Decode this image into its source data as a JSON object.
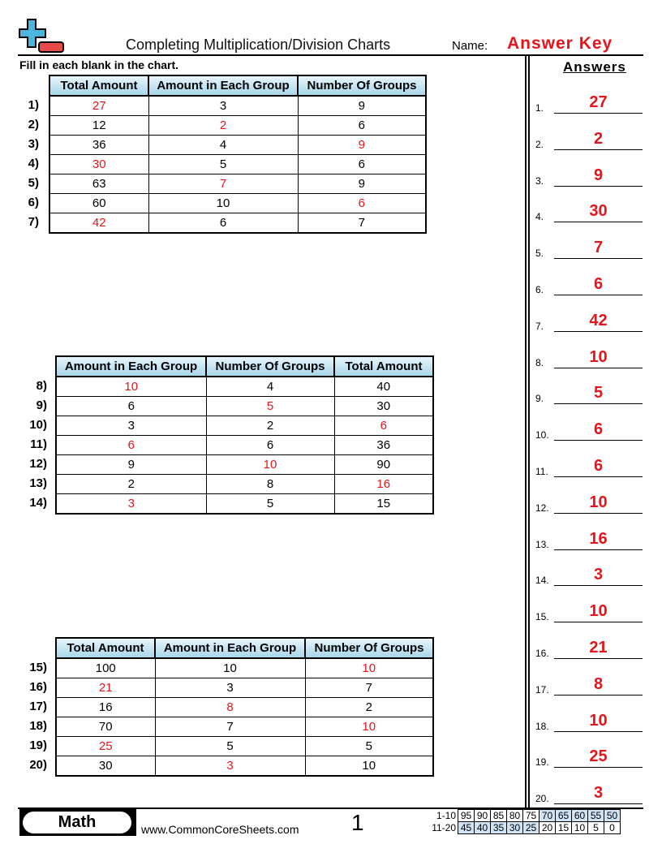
{
  "header": {
    "title": "Completing Multiplication/Division Charts",
    "name_label": "Name:",
    "name_value": "Answer Key",
    "instructions": "Fill in each blank in the chart."
  },
  "colors": {
    "answer": "#e8141b",
    "header_gradient": "#a8d6ea"
  },
  "tables": [
    {
      "headers": [
        "Total Amount",
        "Amount in Each Group",
        "Number Of Groups"
      ],
      "rows": [
        {
          "n": "1)",
          "c": [
            "27",
            "3",
            "9"
          ],
          "a": 0
        },
        {
          "n": "2)",
          "c": [
            "12",
            "2",
            "6"
          ],
          "a": 1
        },
        {
          "n": "3)",
          "c": [
            "36",
            "4",
            "9"
          ],
          "a": 2
        },
        {
          "n": "4)",
          "c": [
            "30",
            "5",
            "6"
          ],
          "a": 0
        },
        {
          "n": "5)",
          "c": [
            "63",
            "7",
            "9"
          ],
          "a": 1
        },
        {
          "n": "6)",
          "c": [
            "60",
            "10",
            "6"
          ],
          "a": 2
        },
        {
          "n": "7)",
          "c": [
            "42",
            "6",
            "7"
          ],
          "a": 0
        }
      ]
    },
    {
      "headers": [
        "Amount in Each Group",
        "Number Of Groups",
        "Total Amount"
      ],
      "rows": [
        {
          "n": "8)",
          "c": [
            "10",
            "4",
            "40"
          ],
          "a": 0
        },
        {
          "n": "9)",
          "c": [
            "6",
            "5",
            "30"
          ],
          "a": 1
        },
        {
          "n": "10)",
          "c": [
            "3",
            "2",
            "6"
          ],
          "a": 2
        },
        {
          "n": "11)",
          "c": [
            "6",
            "6",
            "36"
          ],
          "a": 0
        },
        {
          "n": "12)",
          "c": [
            "9",
            "10",
            "90"
          ],
          "a": 1
        },
        {
          "n": "13)",
          "c": [
            "2",
            "8",
            "16"
          ],
          "a": 2
        },
        {
          "n": "14)",
          "c": [
            "3",
            "5",
            "15"
          ],
          "a": 0
        }
      ]
    },
    {
      "headers": [
        "Total Amount",
        "Amount in Each Group",
        "Number Of Groups"
      ],
      "rows": [
        {
          "n": "15)",
          "c": [
            "100",
            "10",
            "10"
          ],
          "a": 2
        },
        {
          "n": "16)",
          "c": [
            "21",
            "3",
            "7"
          ],
          "a": 0
        },
        {
          "n": "17)",
          "c": [
            "16",
            "8",
            "2"
          ],
          "a": 1
        },
        {
          "n": "18)",
          "c": [
            "70",
            "7",
            "10"
          ],
          "a": 2
        },
        {
          "n": "19)",
          "c": [
            "25",
            "5",
            "5"
          ],
          "a": 0
        },
        {
          "n": "20)",
          "c": [
            "30",
            "3",
            "10"
          ],
          "a": 1
        }
      ]
    }
  ],
  "answers": {
    "title": "Answers",
    "items": [
      "27",
      "2",
      "9",
      "30",
      "7",
      "6",
      "42",
      "10",
      "5",
      "6",
      "6",
      "10",
      "16",
      "3",
      "10",
      "21",
      "8",
      "10",
      "25",
      "3"
    ]
  },
  "footer": {
    "subject": "Math",
    "site": "www.CommonCoreSheets.com",
    "page": "1",
    "score": {
      "row1_label": "1-10",
      "row1": [
        "95",
        "90",
        "85",
        "80",
        "75",
        "70",
        "65",
        "60",
        "55",
        "50"
      ],
      "row2_label": "11-20",
      "row2": [
        "45",
        "40",
        "35",
        "30",
        "25",
        "20",
        "15",
        "10",
        "5",
        "0"
      ]
    }
  }
}
